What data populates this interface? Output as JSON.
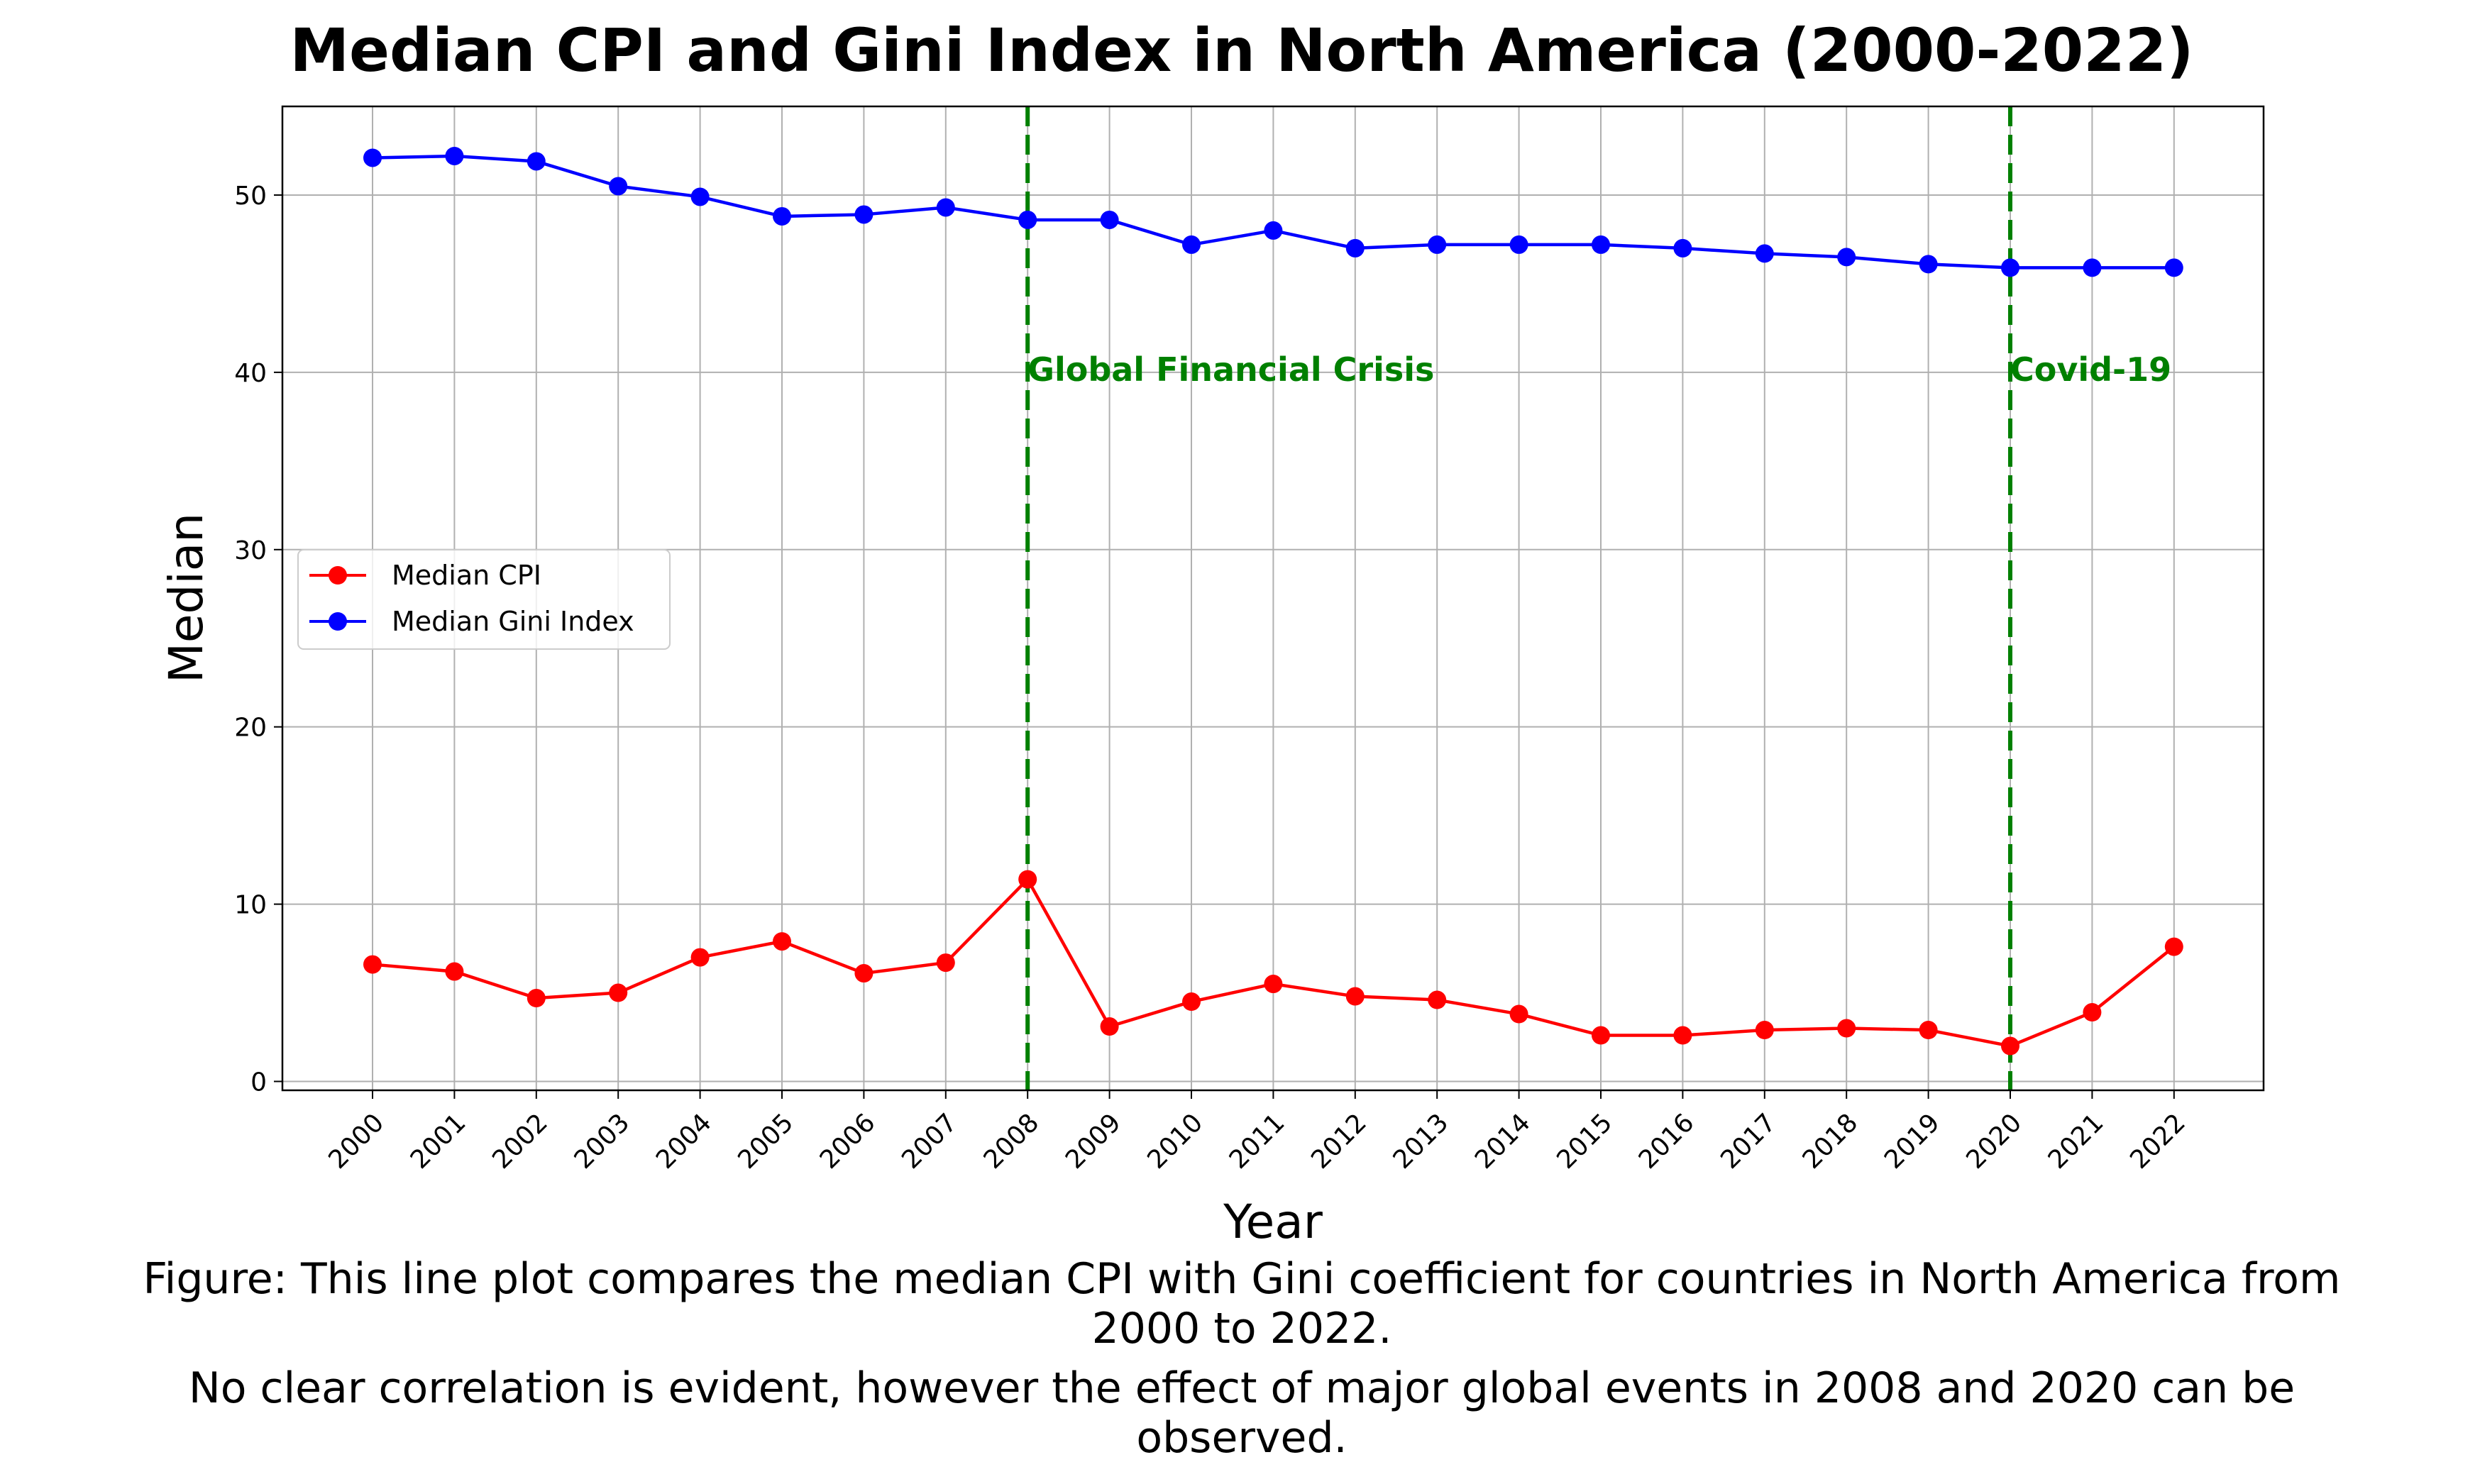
{
  "chart_data": {
    "type": "line",
    "title": "Median CPI and Gini Index in North America (2000-2022)",
    "xlabel": "Year",
    "ylabel": "Median",
    "x": [
      "2000",
      "2001",
      "2002",
      "2003",
      "2004",
      "2005",
      "2006",
      "2007",
      "2008",
      "2009",
      "2010",
      "2011",
      "2012",
      "2013",
      "2014",
      "2015",
      "2016",
      "2017",
      "2018",
      "2019",
      "2020",
      "2021",
      "2022"
    ],
    "yticks": [
      0,
      10,
      20,
      30,
      40,
      50
    ],
    "ylim": [
      -0.5,
      55
    ],
    "grid": true,
    "legend_position": "center-left",
    "series": [
      {
        "name": "Median CPI",
        "color": "#ff0000",
        "values": [
          6.6,
          6.2,
          4.7,
          5.0,
          7.0,
          7.9,
          6.1,
          6.7,
          11.4,
          3.1,
          4.5,
          5.5,
          4.8,
          4.6,
          3.8,
          2.6,
          2.6,
          2.9,
          3.0,
          2.9,
          2.0,
          3.9,
          7.6
        ]
      },
      {
        "name": "Median Gini Index",
        "color": "#0000ff",
        "values": [
          52.1,
          52.2,
          51.9,
          50.5,
          49.9,
          48.8,
          48.9,
          49.3,
          48.6,
          48.6,
          47.2,
          48.0,
          47.0,
          47.2,
          47.2,
          47.2,
          47.0,
          46.7,
          46.5,
          46.1,
          45.9,
          45.9,
          45.9
        ]
      }
    ],
    "annotations": [
      {
        "x": "2008",
        "label": "Global Financial Crisis",
        "color": "#008000",
        "style": "dashed-vertical-line"
      },
      {
        "x": "2020",
        "label": "Covid-19",
        "color": "#008000",
        "style": "dashed-vertical-line"
      }
    ]
  },
  "caption": {
    "lines": [
      "Figure: This line plot compares the median CPI with Gini coefficient for countries in North America from",
      "2000 to 2022.",
      "No clear correlation is evident, however the effect of major global events in 2008 and 2020 can be",
      "observed."
    ]
  }
}
